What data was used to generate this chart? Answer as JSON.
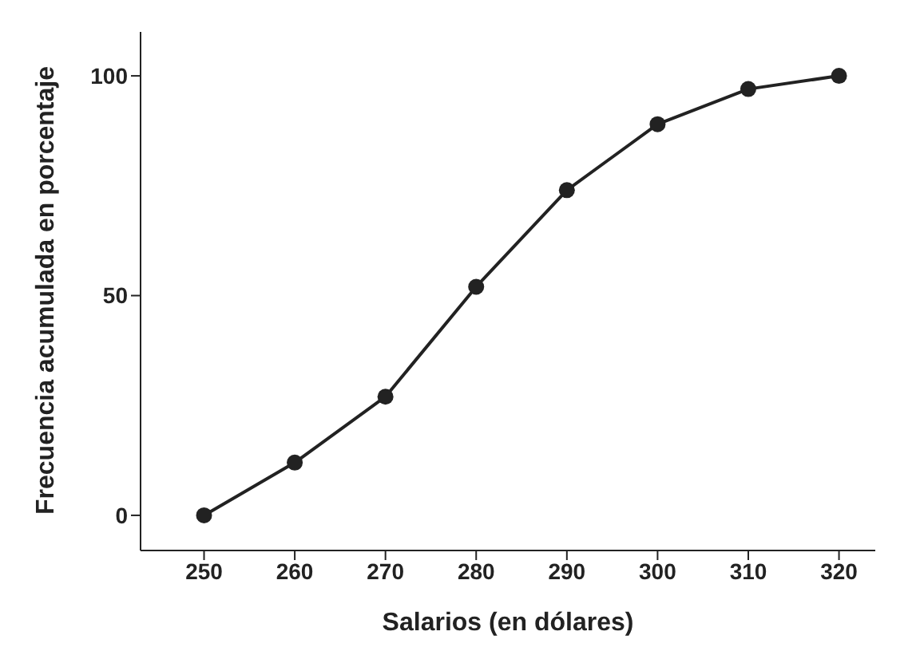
{
  "chart_data": {
    "type": "line",
    "xlabel": "Salarios (en dólares)",
    "ylabel": "Frecuencia acumulada en porcentaje",
    "x": [
      250,
      260,
      270,
      280,
      290,
      300,
      310,
      320
    ],
    "series": [
      {
        "color": "#222222",
        "values": [
          0,
          12,
          27,
          52,
          74,
          89,
          97,
          100
        ]
      }
    ],
    "xlim": [
      243,
      324
    ],
    "xticks": [
      250,
      260,
      270,
      280,
      290,
      300,
      310,
      320
    ],
    "ylim": [
      -8,
      110
    ],
    "yticks": [
      0,
      50,
      100
    ],
    "marker": "circle",
    "grid": false,
    "legend": false
  }
}
